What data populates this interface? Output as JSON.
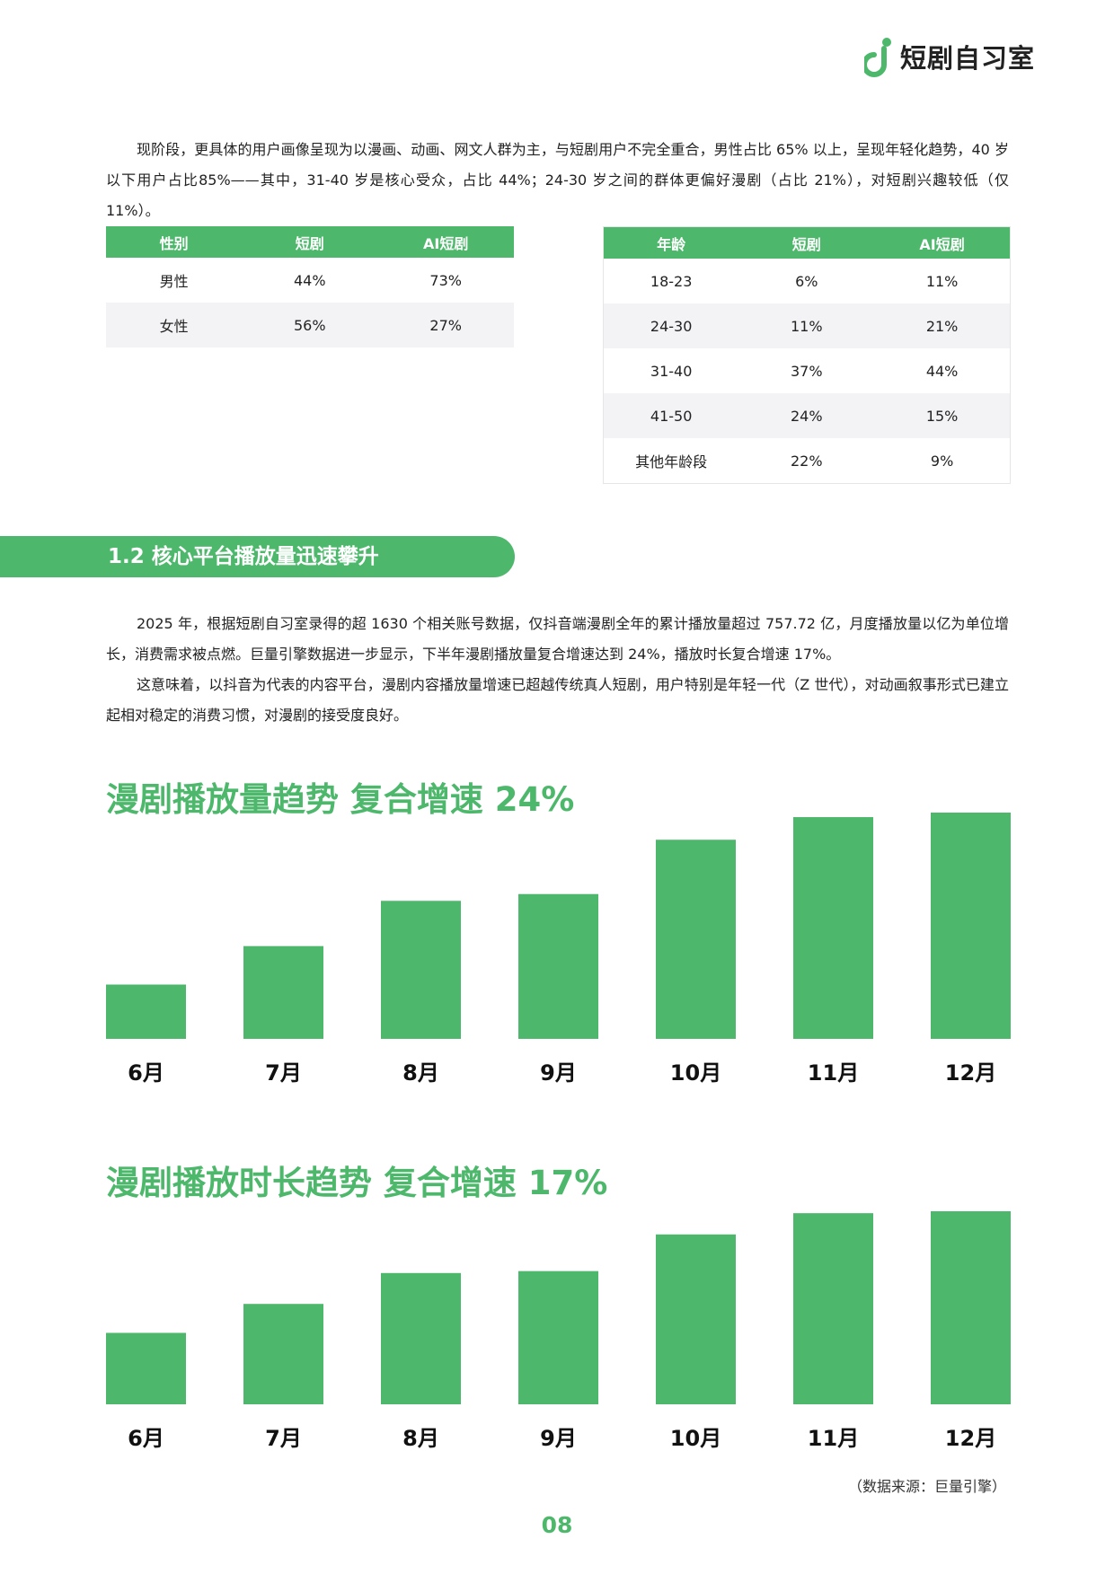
{
  "header": {
    "logo_text": "短剧自习室"
  },
  "intro": {
    "paragraph": "现阶段，更具体的用户画像呈现为以漫画、动画、网文人群为主，与短剧用户不完全重合，男性占比 65% 以上，呈现年轻化趋势，40 岁以下用户占比85%——其中，31-40 岁是核心受众，占比 44%；24-30 岁之间的群体更偏好漫剧（占比 21%），对短剧兴趣较低（仅 11%）。"
  },
  "gender_table": {
    "headers": [
      "性别",
      "短剧",
      "AI短剧"
    ],
    "rows": [
      [
        "男性",
        "44%",
        "73%"
      ],
      [
        "女性",
        "56%",
        "27%"
      ]
    ]
  },
  "age_table": {
    "headers": [
      "年龄",
      "短剧",
      "AI短剧"
    ],
    "rows": [
      [
        "18-23",
        "6%",
        "11%"
      ],
      [
        "24-30",
        "11%",
        "21%"
      ],
      [
        "31-40",
        "37%",
        "44%"
      ],
      [
        "41-50",
        "24%",
        "15%"
      ],
      [
        "其他年龄段",
        "22%",
        "9%"
      ]
    ]
  },
  "section": {
    "title": "1.2 核心平台播放量迅速攀升"
  },
  "body": {
    "paragraph1": "2025 年，根据短剧自习室录得的超 1630 个相关账号数据，仅抖音端漫剧全年的累计播放量超过 757.72 亿，月度播放量以亿为单位增长，消费需求被点燃。巨量引擎数据进一步显示，下半年漫剧播放量复合增速达到 24%，播放时长复合增速 17%。",
    "paragraph2": "这意味着，以抖音为代表的内容平台，漫剧内容播放量增速已超越传统真人短剧，用户特别是年轻一代（Z 世代），对动画叙事形式已建立起相对稳定的消费习惯，对漫剧的接受度良好。"
  },
  "chart_data": [
    {
      "type": "bar",
      "title": "漫剧播放量趋势  复合增速 24%",
      "categories": [
        "6月",
        "7月",
        "8月",
        "9月",
        "10月",
        "11月",
        "12月"
      ],
      "values": [
        24,
        41,
        61,
        64,
        88,
        98,
        100
      ],
      "color": "#4db86b",
      "ylim": [
        0,
        100
      ],
      "grid": false
    },
    {
      "type": "bar",
      "title": "漫剧播放时长趋势  复合增速 17%",
      "categories": [
        "6月",
        "7月",
        "8月",
        "9月",
        "10月",
        "11月",
        "12月"
      ],
      "values": [
        37,
        52,
        68,
        69,
        88,
        99,
        100
      ],
      "color": "#4db86b",
      "ylim": [
        0,
        100
      ],
      "grid": false
    }
  ],
  "footer": {
    "source": "（数据来源：巨量引擎）",
    "page_number": "08"
  },
  "colors": {
    "accent": "#4db86b",
    "row_alt": "#f3f3f5"
  }
}
